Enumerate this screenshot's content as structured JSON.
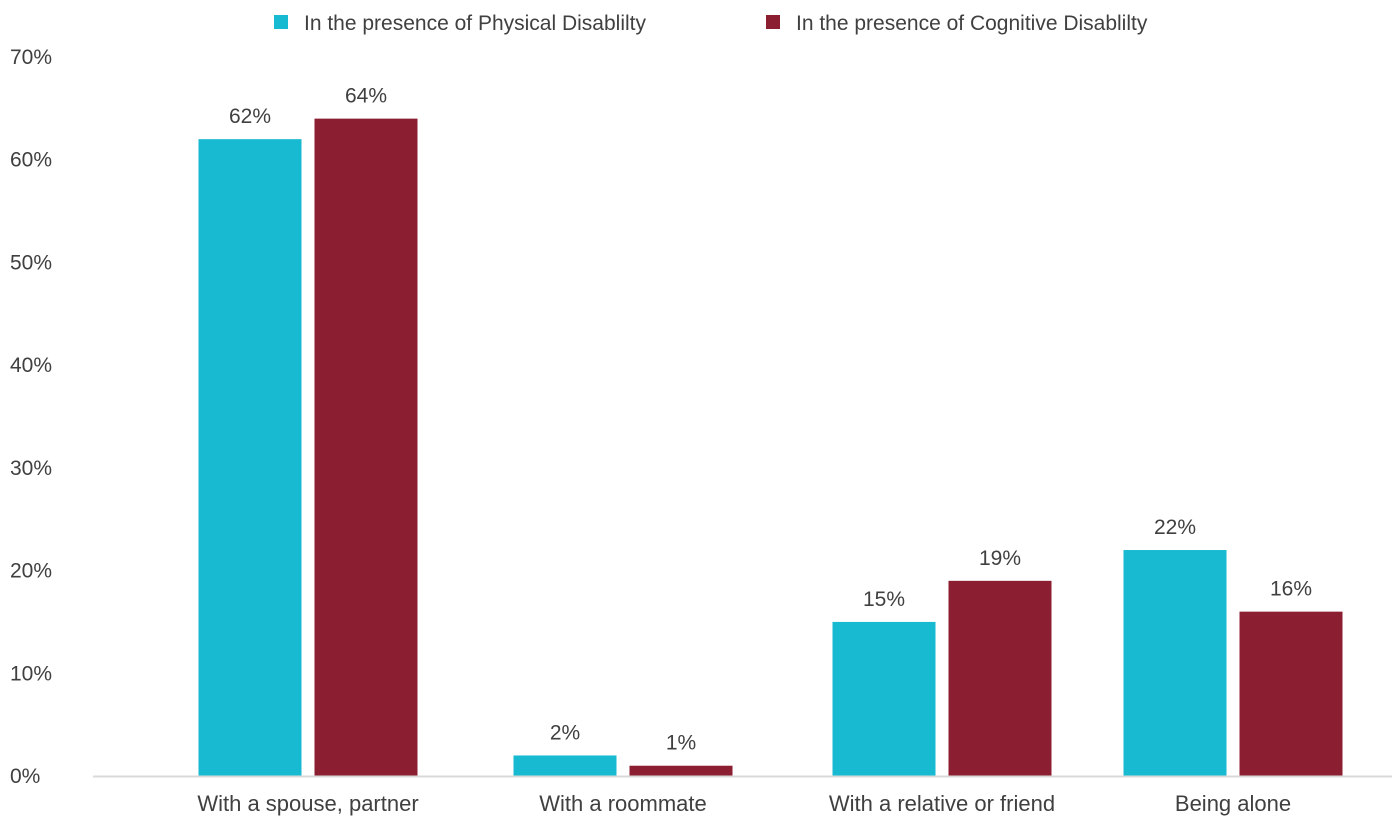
{
  "chart_data": {
    "type": "bar",
    "title": "",
    "xlabel": "",
    "ylabel": "",
    "categories": [
      "With a spouse, partner",
      "With a roommate",
      "With a relative or friend",
      "Being alone"
    ],
    "series": [
      {
        "name": "In the presence of Physical Disablilty",
        "color": "#17BAD1",
        "values": [
          62,
          2,
          15,
          22
        ],
        "labels": [
          "62%",
          "2%",
          "15%",
          "22%"
        ]
      },
      {
        "name": "In the presence of Cognitive Disablilty",
        "color": "#8B1E30",
        "values": [
          64,
          1,
          19,
          16
        ],
        "labels": [
          "64%",
          "1%",
          "19%",
          "16%"
        ]
      }
    ],
    "ylim": [
      0,
      70
    ],
    "yticks": [
      0,
      10,
      20,
      30,
      40,
      50,
      60,
      70
    ],
    "ytick_labels": [
      "0%",
      "10%",
      "20%",
      "30%",
      "40%",
      "50%",
      "60%",
      "70%"
    ],
    "grid": false,
    "legend_position": "top"
  }
}
